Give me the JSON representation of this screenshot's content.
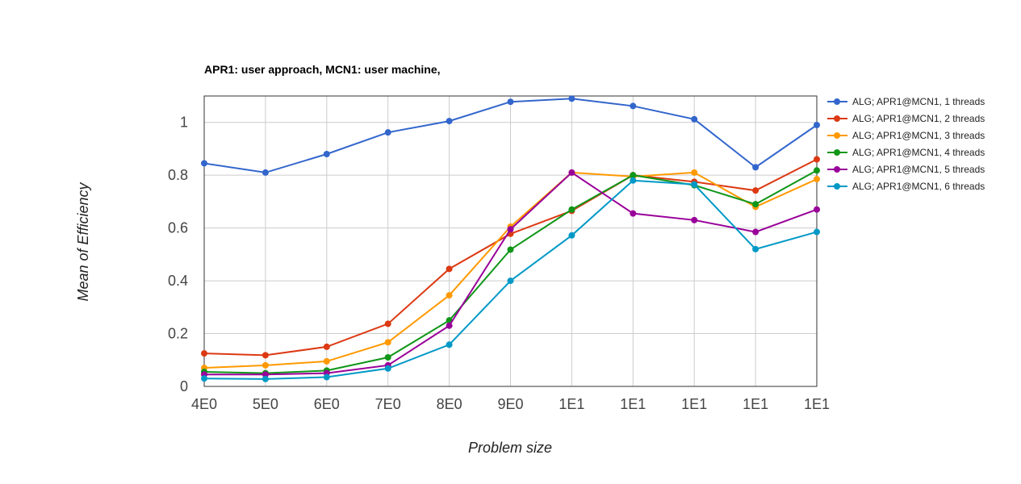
{
  "chart_data": {
    "type": "line",
    "title": "APR1: user approach, MCN1: user machine,",
    "xlabel": "Problem size",
    "ylabel": "Mean of Efficiency",
    "categories": [
      "4E0",
      "5E0",
      "6E0",
      "7E0",
      "8E0",
      "9E0",
      "1E1",
      "1E1",
      "1E1",
      "1E1",
      "1E1"
    ],
    "ylim": [
      0,
      1.1
    ],
    "yticks": [
      "0",
      "0.2",
      "0.4",
      "0.6",
      "0.8",
      "1"
    ],
    "grid": true,
    "legend_position": "right",
    "series": [
      {
        "name": "ALG; APR1@MCN1, 1 threads",
        "color": "#3366cc",
        "values": [
          0.845,
          0.81,
          0.88,
          0.962,
          1.005,
          1.078,
          1.09,
          1.062,
          1.012,
          0.83,
          0.99
        ]
      },
      {
        "name": "ALG; APR1@MCN1, 2 threads",
        "color": "#dc3912",
        "values": [
          0.125,
          0.118,
          0.15,
          0.237,
          0.445,
          0.578,
          0.665,
          0.8,
          0.775,
          0.742,
          0.86
        ]
      },
      {
        "name": "ALG; APR1@MCN1, 3 threads",
        "color": "#ff9900",
        "values": [
          0.07,
          0.08,
          0.095,
          0.167,
          0.345,
          0.605,
          0.81,
          0.795,
          0.81,
          0.68,
          0.785
        ]
      },
      {
        "name": "ALG; APR1@MCN1, 4 threads",
        "color": "#109618",
        "values": [
          0.055,
          0.05,
          0.06,
          0.11,
          0.25,
          0.518,
          0.67,
          0.8,
          0.762,
          0.69,
          0.818
        ]
      },
      {
        "name": "ALG; APR1@MCN1, 5 threads",
        "color": "#990099",
        "values": [
          0.045,
          0.045,
          0.05,
          0.08,
          0.23,
          0.595,
          0.81,
          0.655,
          0.63,
          0.585,
          0.67
        ]
      },
      {
        "name": "ALG; APR1@MCN1, 6 threads",
        "color": "#0099c6",
        "values": [
          0.03,
          0.028,
          0.035,
          0.068,
          0.158,
          0.4,
          0.572,
          0.78,
          0.765,
          0.52,
          0.585
        ]
      }
    ]
  }
}
